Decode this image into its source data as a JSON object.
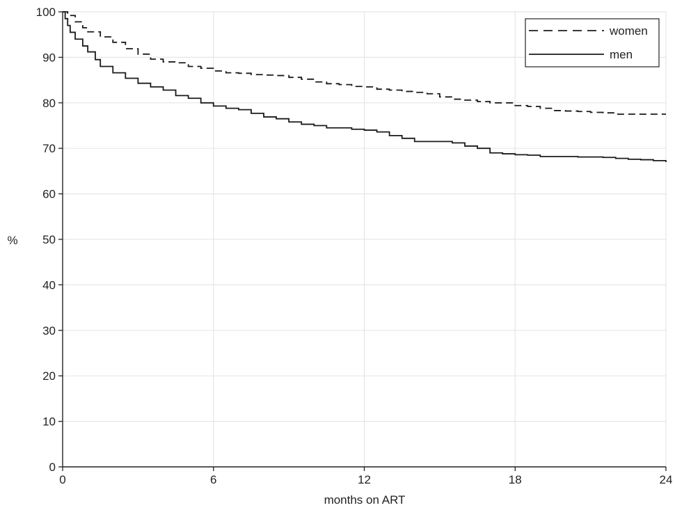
{
  "chart_data": {
    "type": "line",
    "title": "",
    "xlabel": "months on ART",
    "ylabel": "%",
    "xlim": [
      0,
      24
    ],
    "ylim": [
      0,
      100
    ],
    "xticks": [
      0,
      6,
      12,
      18,
      24
    ],
    "yticks": [
      0,
      10,
      20,
      30,
      40,
      50,
      60,
      70,
      80,
      90,
      100
    ],
    "grid": true,
    "legend_position": "top-right",
    "step": true,
    "series": [
      {
        "name": "women",
        "style": "dashed",
        "color": "#1a1a1a",
        "points": [
          [
            0,
            100
          ],
          [
            0.2,
            99.2
          ],
          [
            0.5,
            97.8
          ],
          [
            0.8,
            96.5
          ],
          [
            1.0,
            95.6
          ],
          [
            1.5,
            94.5
          ],
          [
            2.0,
            93.3
          ],
          [
            2.5,
            91.9
          ],
          [
            3.0,
            90.7
          ],
          [
            3.5,
            89.6
          ],
          [
            4.0,
            89.0
          ],
          [
            4.5,
            88.8
          ],
          [
            5.0,
            88.0
          ],
          [
            5.5,
            87.6
          ],
          [
            6.0,
            87.0
          ],
          [
            6.5,
            86.6
          ],
          [
            7.0,
            86.5
          ],
          [
            7.5,
            86.2
          ],
          [
            8.0,
            86.1
          ],
          [
            8.5,
            86.0
          ],
          [
            9.0,
            85.6
          ],
          [
            9.5,
            85.2
          ],
          [
            10.0,
            84.6
          ],
          [
            10.5,
            84.2
          ],
          [
            11.0,
            84.0
          ],
          [
            11.5,
            83.6
          ],
          [
            12.0,
            83.5
          ],
          [
            12.5,
            83.0
          ],
          [
            13.0,
            82.8
          ],
          [
            13.5,
            82.5
          ],
          [
            14.0,
            82.3
          ],
          [
            14.5,
            82.0
          ],
          [
            15.0,
            81.3
          ],
          [
            15.5,
            80.8
          ],
          [
            16.0,
            80.6
          ],
          [
            16.5,
            80.3
          ],
          [
            17.0,
            80.0
          ],
          [
            17.5,
            80.0
          ],
          [
            18.0,
            79.4
          ],
          [
            18.5,
            79.2
          ],
          [
            19.0,
            78.8
          ],
          [
            19.5,
            78.3
          ],
          [
            20.0,
            78.2
          ],
          [
            20.5,
            78.1
          ],
          [
            21.0,
            77.9
          ],
          [
            21.5,
            77.8
          ],
          [
            22.0,
            77.5
          ],
          [
            22.5,
            77.5
          ],
          [
            23.0,
            77.5
          ],
          [
            23.5,
            77.5
          ],
          [
            24.0,
            77.5
          ]
        ]
      },
      {
        "name": "men",
        "style": "solid",
        "color": "#1a1a1a",
        "points": [
          [
            0,
            100
          ],
          [
            0.1,
            98.5
          ],
          [
            0.2,
            97.0
          ],
          [
            0.3,
            95.5
          ],
          [
            0.5,
            94.0
          ],
          [
            0.8,
            92.5
          ],
          [
            1.0,
            91.2
          ],
          [
            1.3,
            89.5
          ],
          [
            1.5,
            88.0
          ],
          [
            2.0,
            86.6
          ],
          [
            2.5,
            85.4
          ],
          [
            3.0,
            84.3
          ],
          [
            3.5,
            83.5
          ],
          [
            4.0,
            82.8
          ],
          [
            4.5,
            81.6
          ],
          [
            5.0,
            81.0
          ],
          [
            5.5,
            80.0
          ],
          [
            6.0,
            79.3
          ],
          [
            6.5,
            78.8
          ],
          [
            7.0,
            78.5
          ],
          [
            7.5,
            77.7
          ],
          [
            8.0,
            76.9
          ],
          [
            8.5,
            76.5
          ],
          [
            9.0,
            75.8
          ],
          [
            9.5,
            75.3
          ],
          [
            10.0,
            75.0
          ],
          [
            10.5,
            74.5
          ],
          [
            11.0,
            74.5
          ],
          [
            11.5,
            74.2
          ],
          [
            12.0,
            74.0
          ],
          [
            12.5,
            73.6
          ],
          [
            13.0,
            72.8
          ],
          [
            13.5,
            72.2
          ],
          [
            14.0,
            71.5
          ],
          [
            14.5,
            71.5
          ],
          [
            15.0,
            71.5
          ],
          [
            15.5,
            71.2
          ],
          [
            16.0,
            70.5
          ],
          [
            16.5,
            70.0
          ],
          [
            17.0,
            69.0
          ],
          [
            17.5,
            68.8
          ],
          [
            18.0,
            68.6
          ],
          [
            18.5,
            68.5
          ],
          [
            19.0,
            68.2
          ],
          [
            19.5,
            68.2
          ],
          [
            20.0,
            68.2
          ],
          [
            20.5,
            68.1
          ],
          [
            21.0,
            68.1
          ],
          [
            21.5,
            68.0
          ],
          [
            22.0,
            67.8
          ],
          [
            22.5,
            67.6
          ],
          [
            23.0,
            67.5
          ],
          [
            23.5,
            67.3
          ],
          [
            24.0,
            67.0
          ]
        ]
      }
    ]
  }
}
